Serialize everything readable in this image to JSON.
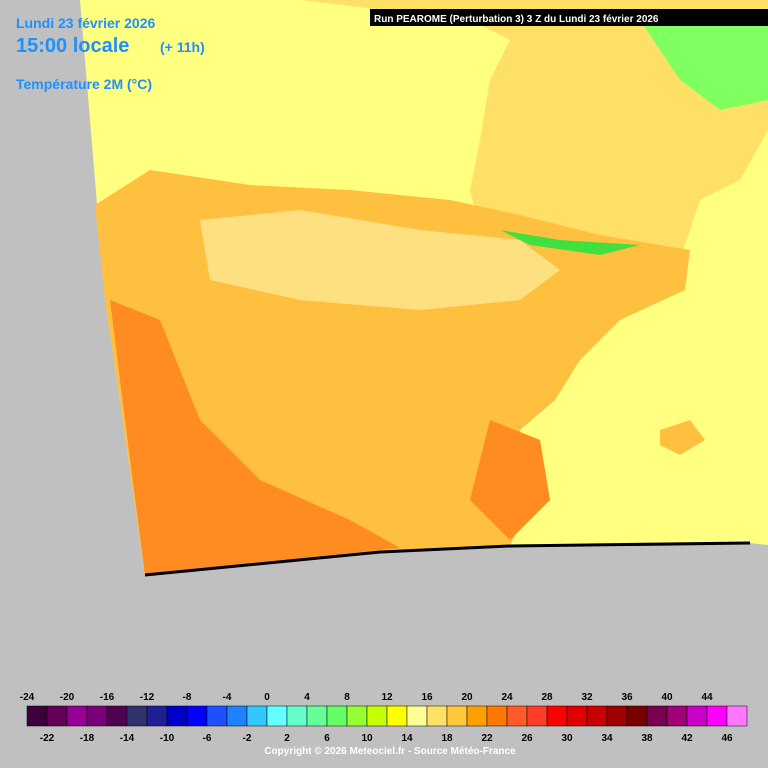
{
  "header": {
    "date": "Lundi 23 février 2026",
    "time": "15:00 locale",
    "offset": "(+ 11h)",
    "parameter": "Température 2M (°C)",
    "run": "Run PEAROME (Perturbation 3) 3 Z du Lundi 23 février 2026"
  },
  "legend": {
    "labels": [
      -24,
      -22,
      -20,
      -18,
      -16,
      -14,
      -12,
      -10,
      -8,
      -6,
      -4,
      -2,
      0,
      2,
      4,
      6,
      8,
      10,
      12,
      14,
      16,
      18,
      20,
      22,
      24,
      26,
      28,
      30,
      32,
      34,
      36,
      38,
      40,
      42,
      44,
      46
    ],
    "colors": [
      "#3c003c",
      "#64005a",
      "#960096",
      "#780078",
      "#500050",
      "#32326e",
      "#1e1e96",
      "#0000c8",
      "#0000ff",
      "#1e50ff",
      "#1e82ff",
      "#32c8ff",
      "#64ffff",
      "#64ffc8",
      "#64ff96",
      "#64ff64",
      "#96ff32",
      "#c8ff00",
      "#ffff00",
      "#ffff96",
      "#ffe164",
      "#ffc83c",
      "#ffa000",
      "#ff7800",
      "#ff5a28",
      "#ff3c28",
      "#ff0000",
      "#e10000",
      "#c80000",
      "#a00000",
      "#780000",
      "#780050",
      "#a00078",
      "#c800c8",
      "#ff00ff",
      "#ff78ff"
    ]
  },
  "footer": {
    "copyright": "Copyright © 2026 Meteociel.fr - Source Météo-France"
  }
}
